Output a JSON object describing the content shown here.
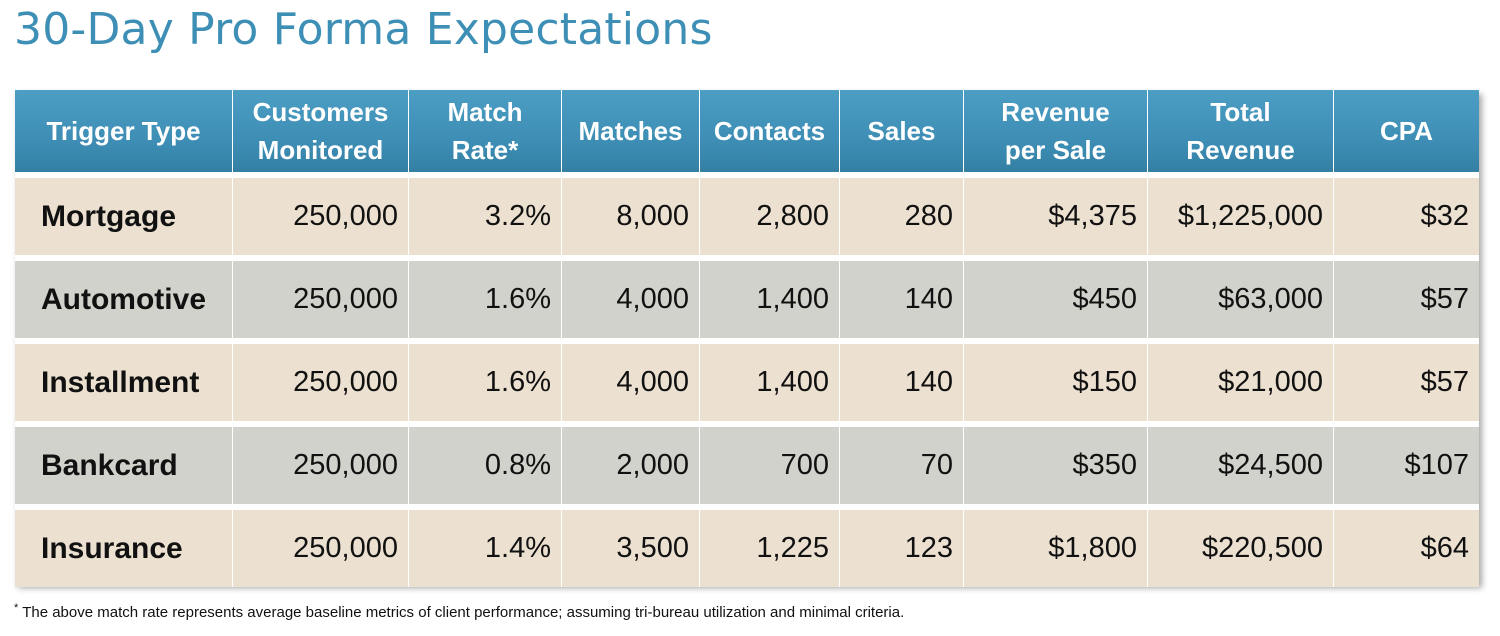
{
  "title": "30-Day Pro Forma Expectations",
  "table": {
    "headers": [
      [
        "Trigger Type"
      ],
      [
        "Customers",
        "Monitored"
      ],
      [
        "Match",
        "Rate*"
      ],
      [
        "Matches"
      ],
      [
        "Contacts"
      ],
      [
        "Sales"
      ],
      [
        "Revenue",
        "per Sale"
      ],
      [
        "Total",
        "Revenue"
      ],
      [
        "CPA"
      ]
    ],
    "rows": [
      [
        "Mortgage",
        "250,000",
        "3.2%",
        "8,000",
        "2,800",
        "280",
        "$4,375",
        "$1,225,000",
        "$32"
      ],
      [
        "Automotive",
        "250,000",
        "1.6%",
        "4,000",
        "1,400",
        "140",
        "$450",
        "$63,000",
        "$57"
      ],
      [
        "Installment",
        "250,000",
        "1.6%",
        "4,000",
        "1,400",
        "140",
        "$150",
        "$21,000",
        "$57"
      ],
      [
        "Bankcard",
        "250,000",
        "0.8%",
        "2,000",
        "700",
        "70",
        "$350",
        "$24,500",
        "$107"
      ],
      [
        "Insurance",
        "250,000",
        "1.4%",
        "3,500",
        "1,225",
        "123",
        "$1,800",
        "$220,500",
        "$64"
      ]
    ]
  },
  "footnote": {
    "marker": "*",
    "text": "The above match rate represents average baseline metrics of client performance; assuming tri-bureau utilization and minimal criteria."
  }
}
